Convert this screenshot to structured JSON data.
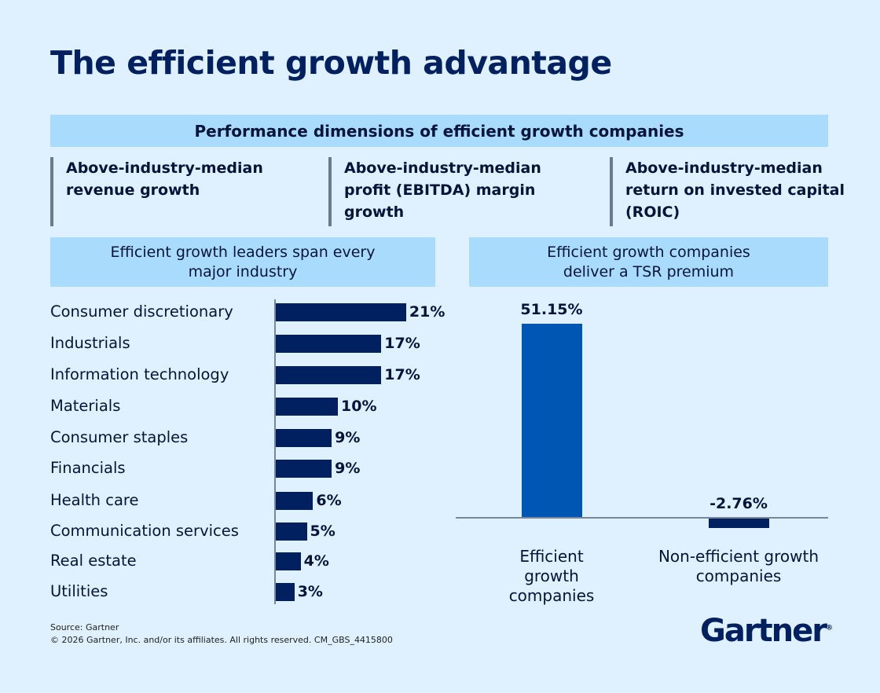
{
  "title": "The efficient growth advantage",
  "performance_header": "Performance dimensions of efficient growth companies",
  "dimensions": [
    "Above-industry-median revenue growth",
    "Above-industry-median profit (EBITDA) margin growth",
    "Above-industry-median return on invested capital (ROIC)"
  ],
  "colors": {
    "background": "#dff0ff",
    "band": "#a9dcfc",
    "navy": "#002060",
    "blue": "#0056b3",
    "axis": "#7a869a"
  },
  "chart_data": [
    {
      "type": "bar",
      "orientation": "horizontal",
      "title": "Efficient growth leaders span every major industry",
      "categories": [
        "Consumer discretionary",
        "Industrials",
        "Information technology",
        "Materials",
        "Consumer staples",
        "Financials",
        "Health care",
        "Communication services",
        "Real estate",
        "Utilities"
      ],
      "values": [
        21,
        17,
        17,
        10,
        9,
        9,
        6,
        5,
        4,
        3
      ],
      "labels": [
        "21%",
        "17%",
        "17%",
        "10%",
        "9%",
        "9%",
        "6%",
        "5%",
        "4%",
        "3%"
      ],
      "unit": "%",
      "grid": false
    },
    {
      "type": "bar",
      "orientation": "vertical",
      "title": "Efficient growth companies deliver a TSR premium",
      "categories": [
        "Efficient growth companies",
        "Non-efficient growth companies"
      ],
      "values": [
        51.15,
        -2.76
      ],
      "labels": [
        "51.15%",
        "-2.76%"
      ],
      "colors": [
        "#0056b3",
        "#002060"
      ],
      "unit": "%",
      "grid": false
    }
  ],
  "footer": {
    "source": "Source: Gartner",
    "copyright": "© 2026 Gartner, Inc. and/or its affiliates. All rights reserved. CM_GBS_4415800",
    "logo": "Gartner"
  }
}
